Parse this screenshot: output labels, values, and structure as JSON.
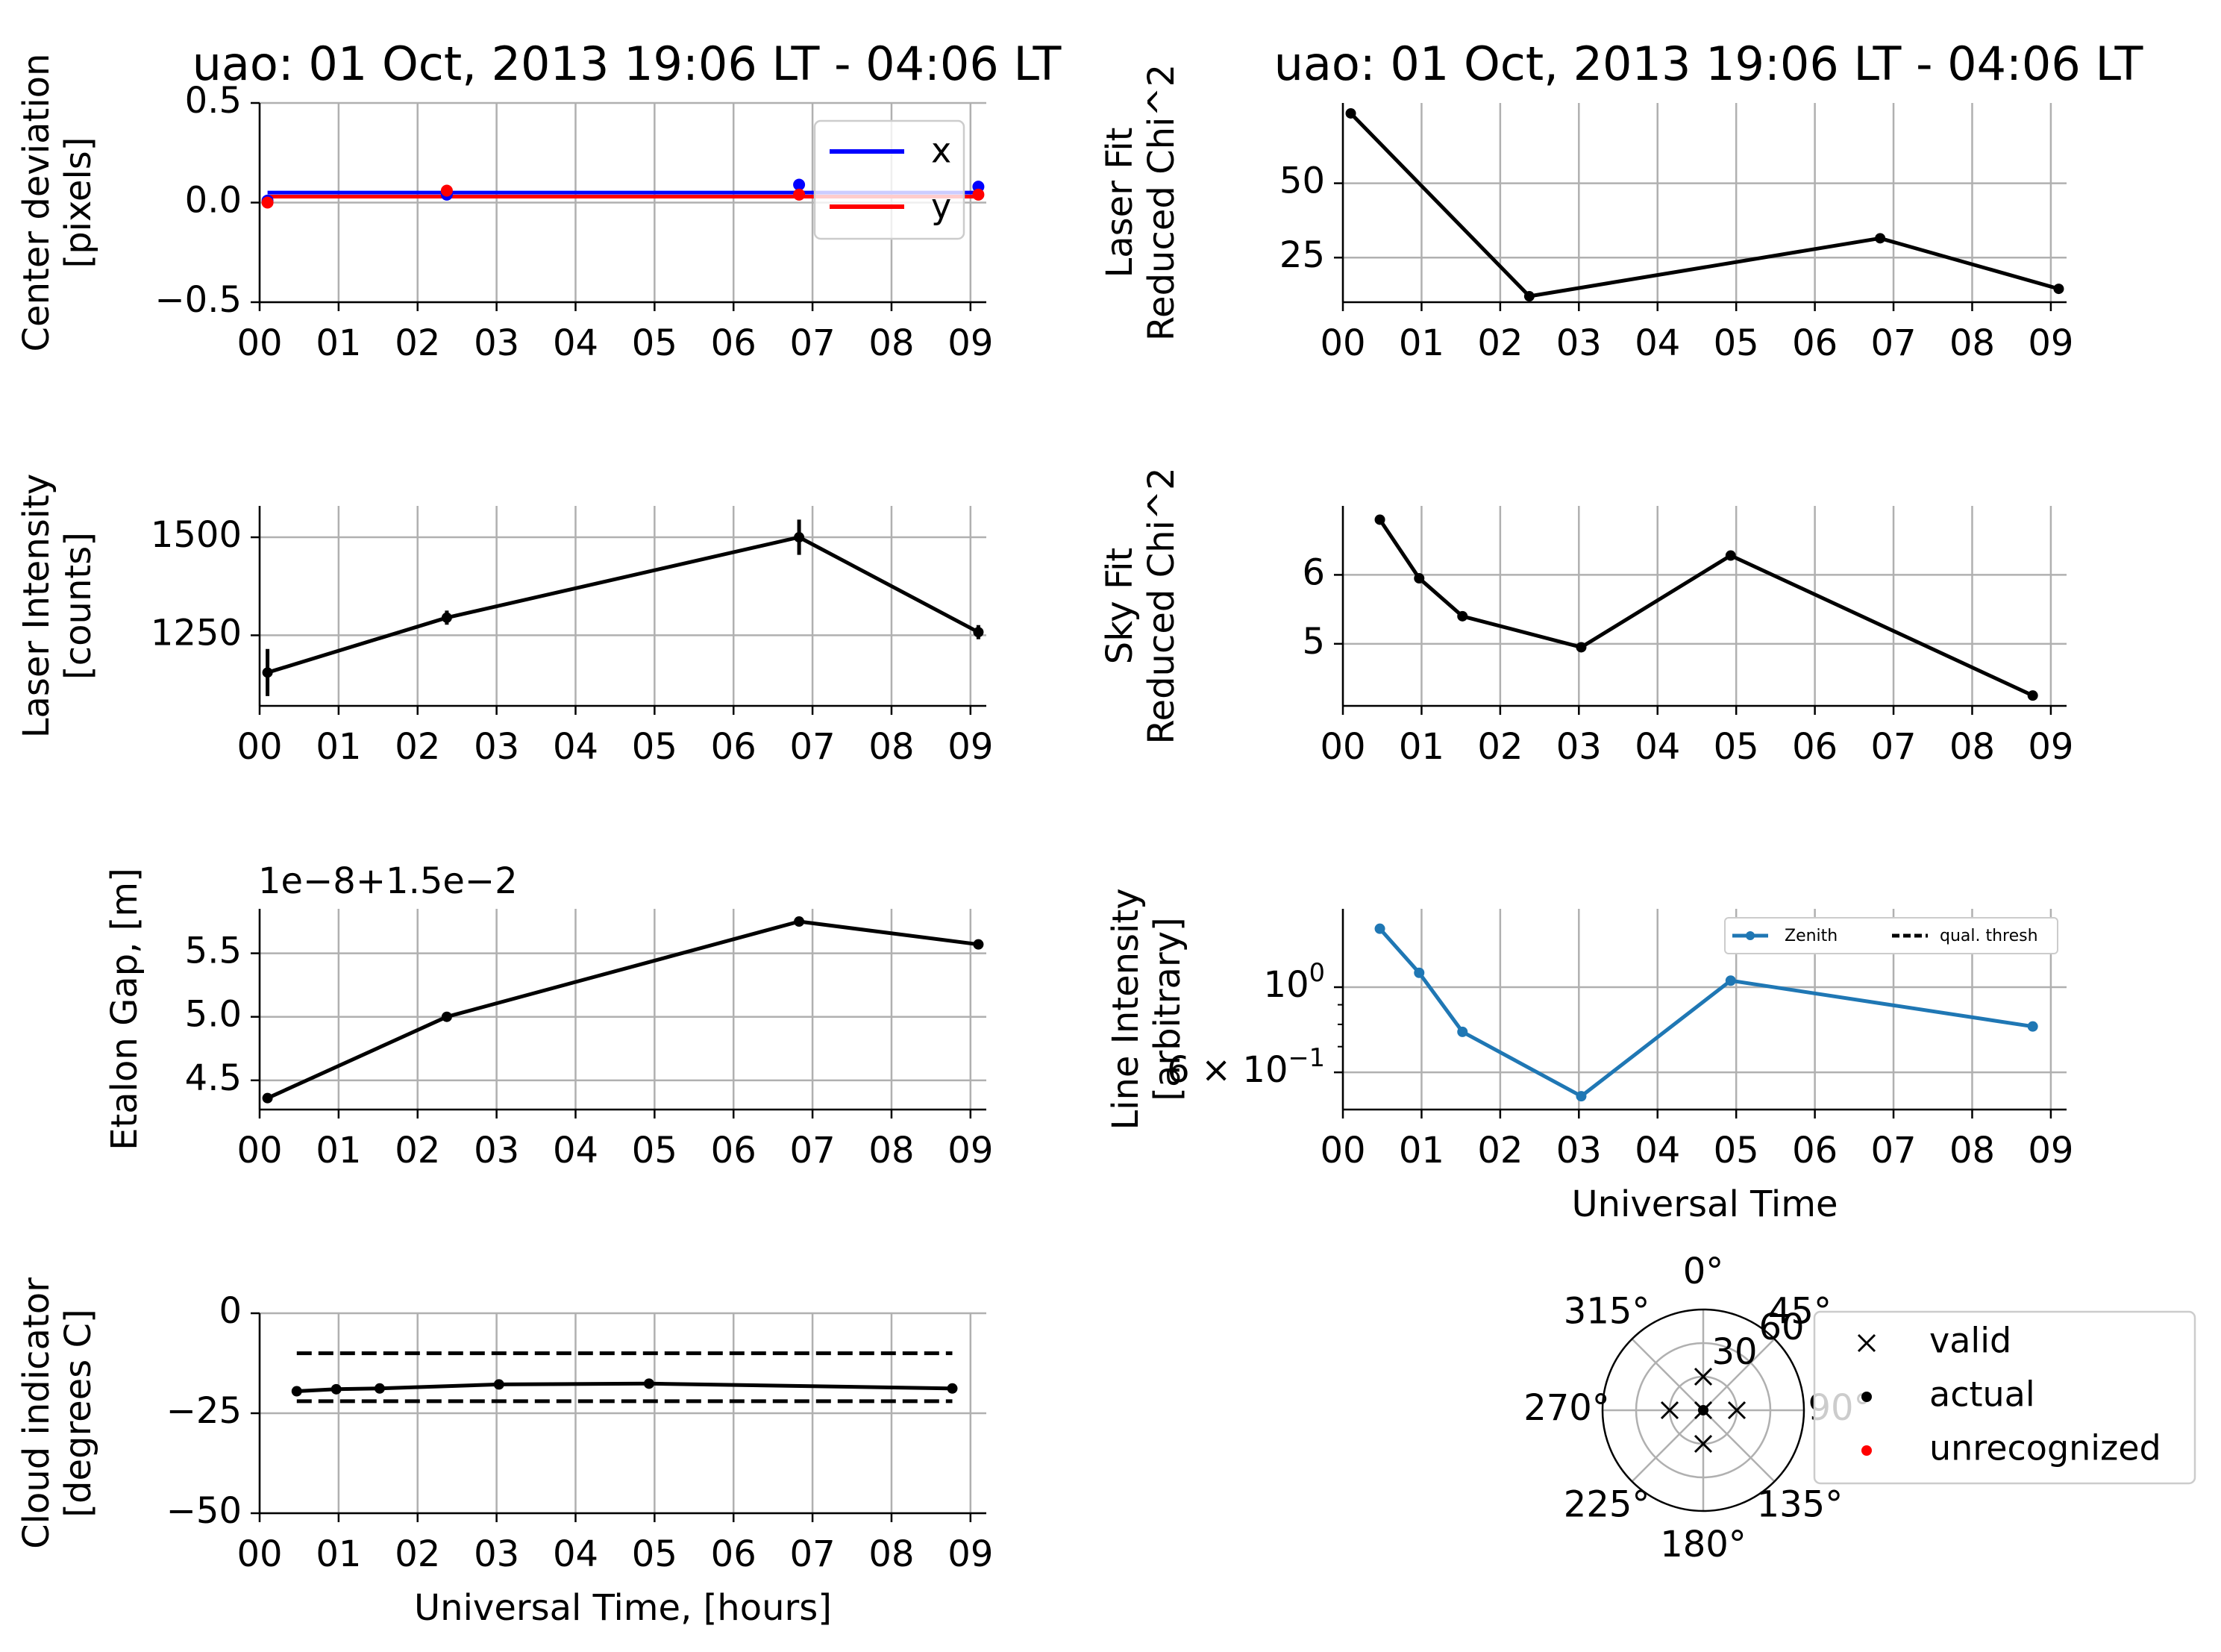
{
  "figure_titles": {
    "left": "uao: 01 Oct, 2013 19:06 LT - 04:06 LT",
    "right": "uao: 01 Oct, 2013 19:06 LT - 04:06 LT"
  },
  "colors": {
    "x_series": "#0000ff",
    "y_series": "#ff0000",
    "black": "#000000",
    "zenith": "#1f77b4",
    "grid": "#b0b0b0",
    "legend_border": "#cccccc",
    "unrecognized": "#ff0000"
  },
  "chart_data": [
    {
      "id": "center",
      "type": "line",
      "title": "uao: 01 Oct, 2013 19:06 LT - 04:06 LT",
      "ylabel": [
        "Center deviation",
        "[pixels]"
      ],
      "xlabel": "",
      "xlim": [
        0,
        9.2
      ],
      "ylim": [
        -0.5,
        0.5
      ],
      "xticks": [
        0,
        1,
        2,
        3,
        4,
        5,
        6,
        7,
        8,
        9
      ],
      "xticklabels": [
        "00",
        "01",
        "02",
        "03",
        "04",
        "05",
        "06",
        "07",
        "08",
        "09"
      ],
      "yticks": [
        0.5,
        0,
        -0.5
      ],
      "yticklabels": [
        "0.5",
        "0.0",
        "−0.5"
      ],
      "grid": true,
      "legend": {
        "placement": "top-right",
        "entries": [
          "x",
          "y"
        ]
      },
      "series": [
        {
          "name": "x",
          "style": "line-only",
          "color": "#0000ff",
          "width": 5,
          "x": [
            0.1,
            9.1
          ],
          "y": [
            0.05,
            0.05
          ]
        },
        {
          "name": "y",
          "style": "line-only",
          "color": "#ff0000",
          "width": 5,
          "x": [
            0.1,
            9.1
          ],
          "y": [
            0.03,
            0.03
          ]
        },
        {
          "style": "points",
          "color": "#0000ff",
          "x": [
            0.1,
            2.37,
            6.83,
            9.1
          ],
          "y": [
            0.01,
            0.04,
            0.09,
            0.08
          ]
        },
        {
          "style": "points",
          "color": "#ff0000",
          "x": [
            0.1,
            2.37,
            6.83,
            9.1
          ],
          "y": [
            0.0,
            0.06,
            0.04,
            0.04
          ]
        }
      ]
    },
    {
      "id": "laserchi",
      "type": "line",
      "ylabel": [
        "Laser Fit",
        "Reduced Chi^2"
      ],
      "xlabel": "",
      "xlim": [
        0,
        9.2
      ],
      "ylim": [
        10,
        77
      ],
      "xticks": [
        0,
        1,
        2,
        3,
        4,
        5,
        6,
        7,
        8,
        9
      ],
      "xticklabels": [
        "00",
        "01",
        "02",
        "03",
        "04",
        "05",
        "06",
        "07",
        "08",
        "09"
      ],
      "yticks": [
        25,
        50
      ],
      "yticklabels": [
        "25",
        "50"
      ],
      "grid": true,
      "series": [
        {
          "style": "line-markers",
          "color": "#000000",
          "width": 5,
          "x": [
            0.1,
            2.37,
            6.83,
            9.1
          ],
          "y": [
            73.5,
            12,
            31.5,
            14.5
          ]
        }
      ]
    },
    {
      "id": "laserint",
      "type": "line",
      "ylabel": [
        "Laser Intensity",
        "[counts]"
      ],
      "xlabel": "",
      "xlim": [
        0,
        9.2
      ],
      "ylim": [
        1070,
        1580
      ],
      "xticks": [
        0,
        1,
        2,
        3,
        4,
        5,
        6,
        7,
        8,
        9
      ],
      "xticklabels": [
        "00",
        "01",
        "02",
        "03",
        "04",
        "05",
        "06",
        "07",
        "08",
        "09"
      ],
      "yticks": [
        1250,
        1500
      ],
      "yticklabels": [
        "1250",
        "1500"
      ],
      "grid": true,
      "series": [
        {
          "style": "line-markers",
          "color": "#000000",
          "width": 5,
          "x": [
            0.1,
            2.37,
            6.83,
            9.1
          ],
          "y": [
            1155,
            1295,
            1500,
            1258
          ],
          "err": [
            60,
            18,
            45,
            18
          ]
        }
      ]
    },
    {
      "id": "skychi",
      "type": "line",
      "ylabel": [
        "Sky Fit",
        "Reduced Chi^2"
      ],
      "xlabel": "",
      "xlim": [
        0,
        9.2
      ],
      "ylim": [
        4.1,
        7.0
      ],
      "xticks": [
        0,
        1,
        2,
        3,
        4,
        5,
        6,
        7,
        8,
        9
      ],
      "xticklabels": [
        "00",
        "01",
        "02",
        "03",
        "04",
        "05",
        "06",
        "07",
        "08",
        "09"
      ],
      "yticks": [
        5,
        6
      ],
      "yticklabels": [
        "5",
        "6"
      ],
      "grid": true,
      "series": [
        {
          "style": "line-markers",
          "color": "#000000",
          "width": 5,
          "x": [
            0.47,
            0.97,
            1.52,
            3.03,
            4.93,
            8.77
          ],
          "y": [
            6.8,
            5.95,
            5.4,
            4.95,
            6.28,
            4.25
          ]
        }
      ]
    },
    {
      "id": "etalon",
      "type": "line",
      "ylabel": [
        "Etalon Gap, [m]"
      ],
      "xlabel": "",
      "offset_text": "1e−8+1.5e−2",
      "xlim": [
        0,
        9.2
      ],
      "ylim": [
        4.27,
        5.85
      ],
      "xticks": [
        0,
        1,
        2,
        3,
        4,
        5,
        6,
        7,
        8,
        9
      ],
      "xticklabels": [
        "00",
        "01",
        "02",
        "03",
        "04",
        "05",
        "06",
        "07",
        "08",
        "09"
      ],
      "yticks": [
        4.5,
        5.0,
        5.5
      ],
      "yticklabels": [
        "4.5",
        "5.0",
        "5.5"
      ],
      "grid": true,
      "series": [
        {
          "style": "line-markers",
          "color": "#000000",
          "width": 5,
          "x": [
            0.1,
            2.37,
            6.83,
            9.1
          ],
          "y": [
            4.36,
            5.0,
            5.75,
            5.57
          ]
        }
      ]
    },
    {
      "id": "lineint",
      "type": "line",
      "ylabel": [
        "Line Intensity",
        "[arbitrary]"
      ],
      "xlabel": "Universal Time",
      "xlim": [
        0,
        9.2
      ],
      "ylim": [
        0.48,
        1.6
      ],
      "yscale": "log",
      "xticks": [
        0,
        1,
        2,
        3,
        4,
        5,
        6,
        7,
        8,
        9
      ],
      "xticklabels": [
        "00",
        "01",
        "02",
        "03",
        "04",
        "05",
        "06",
        "07",
        "08",
        "09"
      ],
      "yticks": [
        1.0,
        0.6
      ],
      "yticklabels": [
        "10^0",
        "6 × 10^−1"
      ],
      "minor_yticks": [
        0.7,
        0.8,
        0.9
      ],
      "grid": true,
      "legend": {
        "placement": "top-right",
        "entries": [
          "Zenith",
          "qual. thresh"
        ]
      },
      "series": [
        {
          "name": "Zenith",
          "style": "line-markers",
          "color": "#1f77b4",
          "width": 5,
          "x": [
            0.47,
            0.97,
            1.52,
            3.03,
            4.93,
            8.77
          ],
          "y": [
            1.42,
            1.09,
            0.765,
            0.52,
            1.04,
            0.79
          ]
        }
      ]
    },
    {
      "id": "cloud",
      "type": "line",
      "ylabel": [
        "Cloud indicator",
        "[degrees C]"
      ],
      "xlabel": "Universal Time, [hours]",
      "xlim": [
        0,
        9.2
      ],
      "ylim": [
        -50,
        0
      ],
      "xticks": [
        0,
        1,
        2,
        3,
        4,
        5,
        6,
        7,
        8,
        9
      ],
      "xticklabels": [
        "00",
        "01",
        "02",
        "03",
        "04",
        "05",
        "06",
        "07",
        "08",
        "09"
      ],
      "yticks": [
        0,
        -25,
        -50
      ],
      "yticklabels": [
        "0",
        "−25",
        "−50"
      ],
      "grid": true,
      "series": [
        {
          "style": "dashed",
          "color": "#000000",
          "width": 5,
          "x": [
            0.47,
            8.77
          ],
          "y": [
            -10,
            -10
          ]
        },
        {
          "style": "dashed",
          "color": "#000000",
          "width": 5,
          "x": [
            0.47,
            8.77
          ],
          "y": [
            -22,
            -22
          ]
        },
        {
          "style": "line-markers",
          "color": "#000000",
          "width": 5,
          "x": [
            0.47,
            0.97,
            1.52,
            3.03,
            4.93,
            8.77
          ],
          "y": [
            -19.5,
            -19.0,
            -18.8,
            -17.8,
            -17.6,
            -18.8
          ]
        }
      ]
    },
    {
      "id": "polar",
      "type": "scatter",
      "projection": "polar",
      "angle_labels": [
        "0°",
        "45°",
        "90°",
        "135°",
        "180°",
        "225°",
        "270°",
        "315°"
      ],
      "radial_tick_labels": [
        "30",
        "60"
      ],
      "rmax": 90,
      "points_valid": [
        {
          "theta": 0,
          "r": 0
        },
        {
          "theta": 0,
          "r": 30
        },
        {
          "theta": 90,
          "r": 30
        },
        {
          "theta": 180,
          "r": 30
        },
        {
          "theta": 270,
          "r": 30
        }
      ],
      "points_actual": [
        {
          "theta": 0,
          "r": 0
        }
      ],
      "legend": {
        "placement": "right",
        "entries": [
          "valid",
          "actual",
          "unrecognized"
        ]
      }
    }
  ]
}
